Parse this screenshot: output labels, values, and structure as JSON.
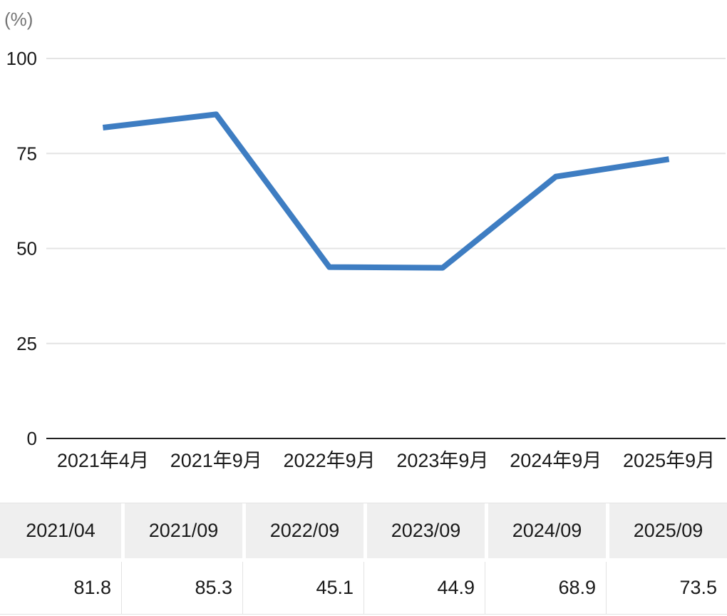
{
  "chart": {
    "unit_label": "(%)"
  },
  "chart_data": {
    "type": "line",
    "categories": [
      "2021年4月",
      "2021年9月",
      "2022年9月",
      "2023年9月",
      "2024年9月",
      "2025年9月"
    ],
    "values": [
      81.8,
      85.3,
      45.1,
      44.9,
      68.9,
      73.5
    ],
    "title": "",
    "xlabel": "",
    "ylabel": "(%)",
    "ylim": [
      0,
      100
    ],
    "yticks": [
      0,
      25,
      50,
      75,
      100
    ],
    "grid": true,
    "legend_position": "none",
    "markers": false,
    "line_color": "#3e7dc2",
    "gridline_color": "#e4e4e4",
    "baseline_color": "#212121",
    "tick_label_color": "#1a1a1a",
    "unit_label_color": "#757575"
  },
  "table": {
    "header_bg": "#efefef",
    "columns": [
      "2021/04",
      "2021/09",
      "2022/09",
      "2023/09",
      "2024/09",
      "2025/09"
    ],
    "values": [
      "81.8",
      "85.3",
      "45.1",
      "44.9",
      "68.9",
      "73.5"
    ]
  }
}
